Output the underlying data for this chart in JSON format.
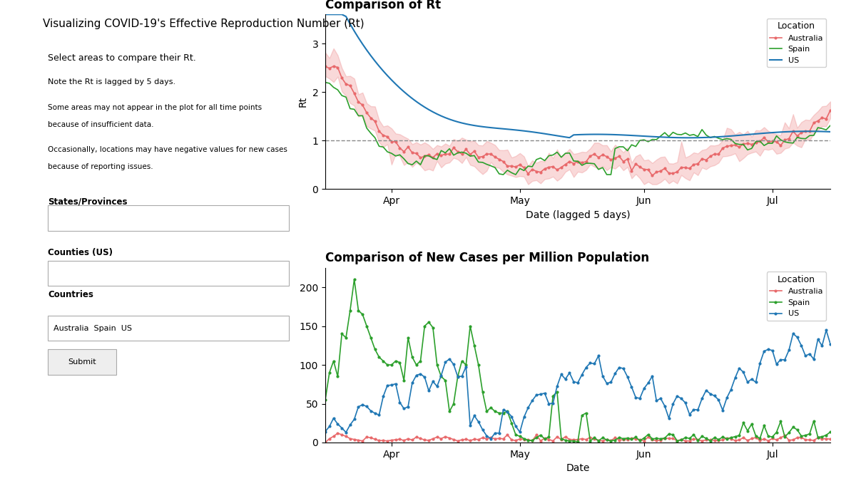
{
  "title1": "Comparison of Rt",
  "title2": "Comparison of New Cases per Million Population",
  "xlabel1": "Date (lagged 5 days)",
  "xlabel2": "Date",
  "ylabel1": "Rt",
  "ylabel2": "",
  "countries": [
    "Australia",
    "Spain",
    "US"
  ],
  "colors": {
    "Australia": "#e8696b",
    "Spain": "#2ca02c",
    "US": "#1f77b4"
  },
  "fig_bg": "#ffffff",
  "plot_bg": "#ffffff",
  "legend_title": "Location",
  "hline_y": 1.0,
  "hline_style": "--",
  "hline_color": "#888888",
  "yticks1": [
    0,
    1,
    2,
    3
  ],
  "yticks2": [
    0,
    50,
    100,
    150,
    200
  ],
  "xtick_labels": [
    "Apr",
    "May",
    "Jun",
    "Jul"
  ],
  "date_range_days": 120
}
